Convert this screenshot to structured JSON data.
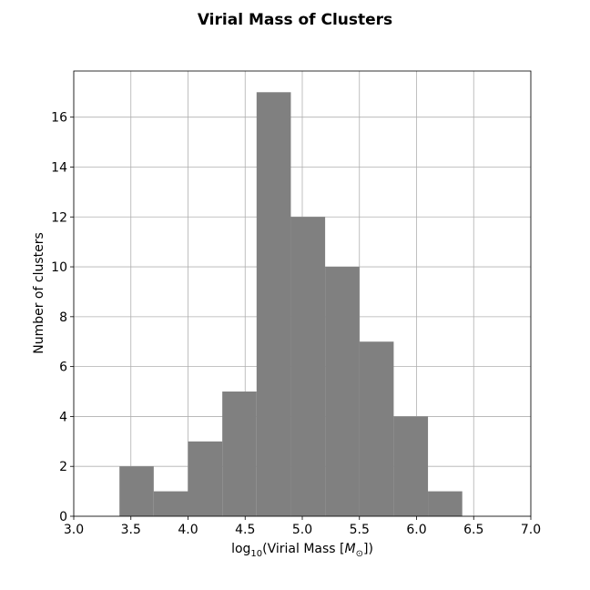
{
  "chart_data": {
    "type": "bar",
    "title": "Virial Mass of Clusters",
    "xlabel_prefix": "log",
    "xlabel_sub": "10",
    "xlabel_main": "(Virial Mass [",
    "xlabel_M": "M",
    "xlabel_odot": "⊙",
    "xlabel_suffix": "])",
    "ylabel": "Number of clusters",
    "xlim": [
      3.0,
      7.0
    ],
    "ylim": [
      0,
      17.85
    ],
    "grid": true,
    "x_ticks": [
      "3.0",
      "3.5",
      "4.0",
      "4.5",
      "5.0",
      "5.5",
      "6.0",
      "6.5",
      "7.0"
    ],
    "y_ticks": [
      "0",
      "2",
      "4",
      "6",
      "8",
      "10",
      "12",
      "14",
      "16"
    ],
    "bar_color": "#808080",
    "bins": [
      {
        "left": 3.4,
        "right": 3.7,
        "count": 2
      },
      {
        "left": 3.7,
        "right": 4.0,
        "count": 1
      },
      {
        "left": 4.0,
        "right": 4.3,
        "count": 3
      },
      {
        "left": 4.3,
        "right": 4.6,
        "count": 5
      },
      {
        "left": 4.6,
        "right": 4.9,
        "count": 17
      },
      {
        "left": 4.9,
        "right": 5.2,
        "count": 12
      },
      {
        "left": 5.2,
        "right": 5.5,
        "count": 10
      },
      {
        "left": 5.5,
        "right": 5.8,
        "count": 7
      },
      {
        "left": 5.8,
        "right": 6.1,
        "count": 4
      },
      {
        "left": 6.1,
        "right": 6.4,
        "count": 1
      }
    ]
  }
}
